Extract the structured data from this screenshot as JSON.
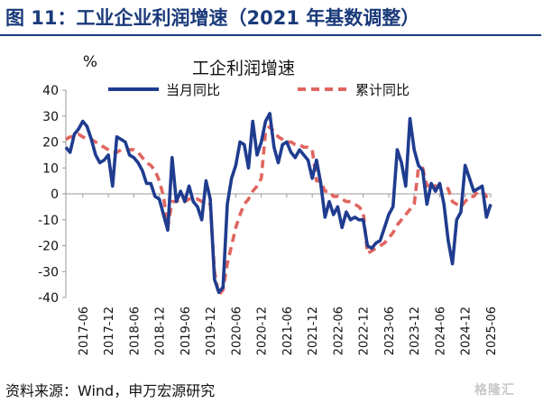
{
  "figure_title": "图 11：工业企业利润增速（2021 年基数调整）",
  "source_text": "资料来源：Wind，申万宏源研究",
  "watermark_text": "格隆汇",
  "chart_data": {
    "type": "line",
    "title": "工企利润增速",
    "ylabel": "%",
    "ylim": [
      -40,
      40
    ],
    "yticks": [
      40,
      30,
      20,
      10,
      0,
      -10,
      -20,
      -30,
      -40
    ],
    "x_tick_labels": [
      "2017-06",
      "2017-12",
      "2018-06",
      "2018-12",
      "2019-06",
      "2019-12",
      "2020-06",
      "2020-12",
      "2021-06",
      "2021-12",
      "2022-06",
      "2022-12",
      "2023-06",
      "2023-12",
      "2024-06",
      "2024-12",
      "2025-06"
    ],
    "x_range": [
      "2017-02",
      "2025-06"
    ],
    "legend_position": "top",
    "series": [
      {
        "name": "当月同比",
        "color": "#1f3c8f",
        "style": "solid",
        "points": [
          [
            "2017-02",
            18
          ],
          [
            "2017-03",
            16
          ],
          [
            "2017-04",
            23
          ],
          [
            "2017-05",
            25
          ],
          [
            "2017-06",
            28
          ],
          [
            "2017-07",
            26
          ],
          [
            "2017-08",
            21
          ],
          [
            "2017-09",
            15
          ],
          [
            "2017-10",
            12
          ],
          [
            "2017-11",
            13
          ],
          [
            "2017-12",
            15
          ],
          [
            "2018-01",
            3
          ],
          [
            "2018-02",
            22
          ],
          [
            "2018-03",
            21
          ],
          [
            "2018-04",
            20
          ],
          [
            "2018-05",
            15
          ],
          [
            "2018-06",
            14
          ],
          [
            "2018-07",
            12
          ],
          [
            "2018-08",
            9
          ],
          [
            "2018-09",
            4
          ],
          [
            "2018-10",
            4
          ],
          [
            "2018-11",
            -1
          ],
          [
            "2018-12",
            -2
          ],
          [
            "2019-01",
            -8
          ],
          [
            "2019-02",
            -14
          ],
          [
            "2019-03",
            14
          ],
          [
            "2019-04",
            -3
          ],
          [
            "2019-05",
            1
          ],
          [
            "2019-06",
            -3
          ],
          [
            "2019-07",
            3
          ],
          [
            "2019-08",
            -3
          ],
          [
            "2019-09",
            -5
          ],
          [
            "2019-10",
            -10
          ],
          [
            "2019-11",
            5
          ],
          [
            "2019-12",
            -2
          ],
          [
            "2020-01",
            -33
          ],
          [
            "2020-02",
            -38
          ],
          [
            "2020-03",
            -36
          ],
          [
            "2020-04",
            -4
          ],
          [
            "2020-05",
            6
          ],
          [
            "2020-06",
            11
          ],
          [
            "2020-07",
            20
          ],
          [
            "2020-08",
            19
          ],
          [
            "2020-09",
            10
          ],
          [
            "2020-10",
            28
          ],
          [
            "2020-11",
            15
          ],
          [
            "2020-12",
            20
          ],
          [
            "2021-01",
            28
          ],
          [
            "2021-02",
            31
          ],
          [
            "2021-03",
            18
          ],
          [
            "2021-04",
            12
          ],
          [
            "2021-05",
            19
          ],
          [
            "2021-06",
            20
          ],
          [
            "2021-07",
            16
          ],
          [
            "2021-08",
            14
          ],
          [
            "2021-09",
            17
          ],
          [
            "2021-10",
            15
          ],
          [
            "2021-11",
            13
          ],
          [
            "2021-12",
            6
          ],
          [
            "2022-01",
            13
          ],
          [
            "2022-02",
            4
          ],
          [
            "2022-03",
            -9
          ],
          [
            "2022-04",
            -3
          ],
          [
            "2022-05",
            -8
          ],
          [
            "2022-06",
            -5
          ],
          [
            "2022-07",
            -13
          ],
          [
            "2022-08",
            -7
          ],
          [
            "2022-09",
            -10
          ],
          [
            "2022-10",
            -9
          ],
          [
            "2022-11",
            -10
          ],
          [
            "2022-12",
            -10
          ],
          [
            "2023-01",
            -20
          ],
          [
            "2023-02",
            -21
          ],
          [
            "2023-03",
            -19
          ],
          [
            "2023-04",
            -18
          ],
          [
            "2023-05",
            -13
          ],
          [
            "2023-06",
            -8
          ],
          [
            "2023-07",
            -5
          ],
          [
            "2023-08",
            17
          ],
          [
            "2023-09",
            12
          ],
          [
            "2023-10",
            3
          ],
          [
            "2023-11",
            29
          ],
          [
            "2023-12",
            17
          ],
          [
            "2024-01",
            11
          ],
          [
            "2024-02",
            9
          ],
          [
            "2024-03",
            -4
          ],
          [
            "2024-04",
            4
          ],
          [
            "2024-05",
            1
          ],
          [
            "2024-06",
            4
          ],
          [
            "2024-07",
            -4
          ],
          [
            "2024-08",
            -18
          ],
          [
            "2024-09",
            -27
          ],
          [
            "2024-10",
            -10
          ],
          [
            "2024-11",
            -7
          ],
          [
            "2024-12",
            11
          ],
          [
            "2025-01",
            6
          ],
          [
            "2025-02",
            1
          ],
          [
            "2025-03",
            2
          ],
          [
            "2025-04",
            3
          ],
          [
            "2025-05",
            -9
          ],
          [
            "2025-06",
            -4
          ]
        ]
      },
      {
        "name": "累计同比",
        "color": "#e06560",
        "style": "dashed",
        "points": [
          [
            "2017-02",
            21
          ],
          [
            "2017-03",
            22
          ],
          [
            "2017-04",
            22
          ],
          [
            "2017-05",
            23
          ],
          [
            "2017-06",
            22
          ],
          [
            "2017-07",
            21
          ],
          [
            "2017-08",
            21
          ],
          [
            "2017-09",
            20
          ],
          [
            "2017-10",
            19
          ],
          [
            "2017-11",
            18
          ],
          [
            "2017-12",
            17
          ],
          [
            "2018-01",
            16
          ],
          [
            "2018-02",
            16
          ],
          [
            "2018-03",
            17
          ],
          [
            "2018-04",
            17
          ],
          [
            "2018-05",
            17
          ],
          [
            "2018-06",
            17
          ],
          [
            "2018-07",
            16
          ],
          [
            "2018-08",
            14
          ],
          [
            "2018-09",
            12
          ],
          [
            "2018-10",
            11
          ],
          [
            "2018-11",
            9
          ],
          [
            "2018-12",
            5
          ],
          [
            "2019-01",
            -1
          ],
          [
            "2019-02",
            -13
          ],
          [
            "2019-03",
            -3
          ],
          [
            "2019-04",
            -3
          ],
          [
            "2019-05",
            -2
          ],
          [
            "2019-06",
            -3
          ],
          [
            "2019-07",
            -2
          ],
          [
            "2019-08",
            -2
          ],
          [
            "2019-09",
            -2
          ],
          [
            "2019-10",
            -3
          ],
          [
            "2019-11",
            -3
          ],
          [
            "2019-12",
            -4
          ],
          [
            "2020-01",
            -30
          ],
          [
            "2020-02",
            -39
          ],
          [
            "2020-03",
            -37
          ],
          [
            "2020-04",
            -27
          ],
          [
            "2020-05",
            -20
          ],
          [
            "2020-06",
            -13
          ],
          [
            "2020-07",
            -8
          ],
          [
            "2020-08",
            -4
          ],
          [
            "2020-09",
            -2
          ],
          [
            "2020-10",
            1
          ],
          [
            "2020-11",
            3
          ],
          [
            "2020-12",
            6
          ],
          [
            "2021-01",
            24
          ],
          [
            "2021-02",
            26
          ],
          [
            "2021-03",
            24
          ],
          [
            "2021-04",
            22
          ],
          [
            "2021-05",
            21
          ],
          [
            "2021-06",
            20
          ],
          [
            "2021-07",
            20
          ],
          [
            "2021-08",
            19
          ],
          [
            "2021-09",
            19
          ],
          [
            "2021-10",
            18
          ],
          [
            "2021-11",
            18
          ],
          [
            "2021-12",
            17
          ],
          [
            "2022-01",
            5
          ],
          [
            "2022-02",
            5
          ],
          [
            "2022-03",
            1
          ],
          [
            "2022-04",
            1
          ],
          [
            "2022-05",
            -1
          ],
          [
            "2022-06",
            -1
          ],
          [
            "2022-07",
            -2
          ],
          [
            "2022-08",
            -3
          ],
          [
            "2022-09",
            -3
          ],
          [
            "2022-10",
            -4
          ],
          [
            "2022-11",
            -5
          ],
          [
            "2022-12",
            -7
          ],
          [
            "2023-01",
            -23
          ],
          [
            "2023-02",
            -22
          ],
          [
            "2023-03",
            -21
          ],
          [
            "2023-04",
            -20
          ],
          [
            "2023-05",
            -19
          ],
          [
            "2023-06",
            -17
          ],
          [
            "2023-07",
            -15
          ],
          [
            "2023-08",
            -12
          ],
          [
            "2023-09",
            -10
          ],
          [
            "2023-10",
            -8
          ],
          [
            "2023-11",
            -6
          ],
          [
            "2023-12",
            -4
          ],
          [
            "2024-01",
            10
          ],
          [
            "2024-02",
            10
          ],
          [
            "2024-03",
            3
          ],
          [
            "2024-04",
            4
          ],
          [
            "2024-05",
            3
          ],
          [
            "2024-06",
            3
          ],
          [
            "2024-07",
            3
          ],
          [
            "2024-08",
            2
          ],
          [
            "2024-09",
            -3
          ],
          [
            "2024-10",
            -4
          ],
          [
            "2024-11",
            -5
          ],
          [
            "2024-12",
            -3
          ],
          [
            "2025-01",
            -1
          ],
          [
            "2025-02",
            -1
          ],
          [
            "2025-03",
            1
          ],
          [
            "2025-04",
            1
          ],
          [
            "2025-05",
            -1
          ],
          [
            "2025-06",
            -2
          ]
        ]
      }
    ]
  }
}
